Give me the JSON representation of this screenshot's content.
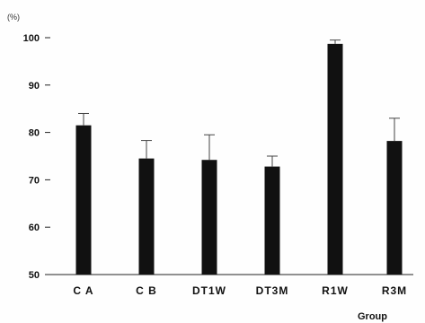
{
  "chart_data": {
    "type": "bar",
    "categories": [
      "CA",
      "CB",
      "DT1W",
      "DT3M",
      "R1W",
      "R3M"
    ],
    "category_labels": [
      "C A",
      "C B",
      "DT1W",
      "DT3M",
      "R1W",
      "R3M"
    ],
    "values": [
      81.5,
      74.5,
      74.2,
      72.8,
      98.7,
      78.2
    ],
    "error_upper": [
      2.5,
      3.8,
      5.3,
      2.2,
      0.8,
      4.8
    ],
    "y_unit_label": "(%)",
    "xlabel": "Group",
    "ylabel": "",
    "ylim": [
      50,
      100
    ],
    "yticks": [
      50,
      60,
      70,
      80,
      90,
      100
    ],
    "grid": false,
    "bar_color": "#111111"
  }
}
